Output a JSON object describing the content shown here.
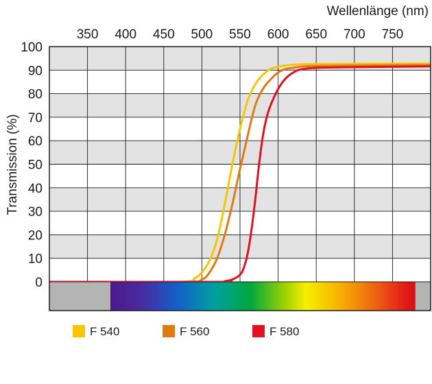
{
  "chart_data": {
    "type": "line",
    "xlabel": "Wellenlänge (nm)",
    "ylabel": "Transmission (%)",
    "xlim": [
      300,
      800
    ],
    "ylim": [
      0,
      100
    ],
    "x_ticks": [
      350,
      400,
      450,
      500,
      550,
      600,
      650,
      700,
      750
    ],
    "y_ticks": [
      0,
      10,
      20,
      30,
      40,
      50,
      60,
      70,
      80,
      90,
      100
    ],
    "x_axis_position": "top",
    "grid": true,
    "alternating_bands": true,
    "band_color": "#e3e3e3",
    "spectrum_bar": {
      "start_nm": 380,
      "end_nm": 780,
      "side_fill": "#b4b4b4"
    },
    "legend_placement": "bottom",
    "series": [
      {
        "name": "F 540",
        "color": "#f7c600",
        "x": [
          300,
          470,
          490,
          500,
          510,
          520,
          530,
          540,
          550,
          560,
          570,
          580,
          590,
          600,
          610,
          620,
          630,
          650,
          700,
          800
        ],
        "y": [
          0,
          0,
          1.5,
          4,
          9,
          18,
          33,
          50,
          65,
          77,
          84,
          88,
          90.5,
          91.5,
          92,
          92.3,
          92.5,
          92.6,
          92.7,
          92.8
        ]
      },
      {
        "name": "F 560",
        "color": "#e07b12",
        "x": [
          300,
          475,
          500,
          510,
          520,
          530,
          540,
          550,
          560,
          570,
          580,
          590,
          600,
          610,
          620,
          630,
          650,
          700,
          800
        ],
        "y": [
          0,
          0,
          1,
          4,
          10,
          20,
          33,
          48,
          62,
          75,
          82,
          86,
          89,
          90.5,
          91,
          91.5,
          91.8,
          92,
          92.2
        ]
      },
      {
        "name": "F 580",
        "color": "#e3101f",
        "x": [
          300,
          520,
          530,
          540,
          550,
          555,
          560,
          565,
          570,
          575,
          580,
          585,
          590,
          600,
          610,
          620,
          630,
          650,
          700,
          800
        ],
        "y": [
          0,
          0,
          0.3,
          1,
          3,
          6,
          12,
          22,
          35,
          50,
          62,
          70,
          75,
          82,
          86.5,
          89,
          90.3,
          91,
          91.3,
          91.6
        ]
      }
    ]
  }
}
